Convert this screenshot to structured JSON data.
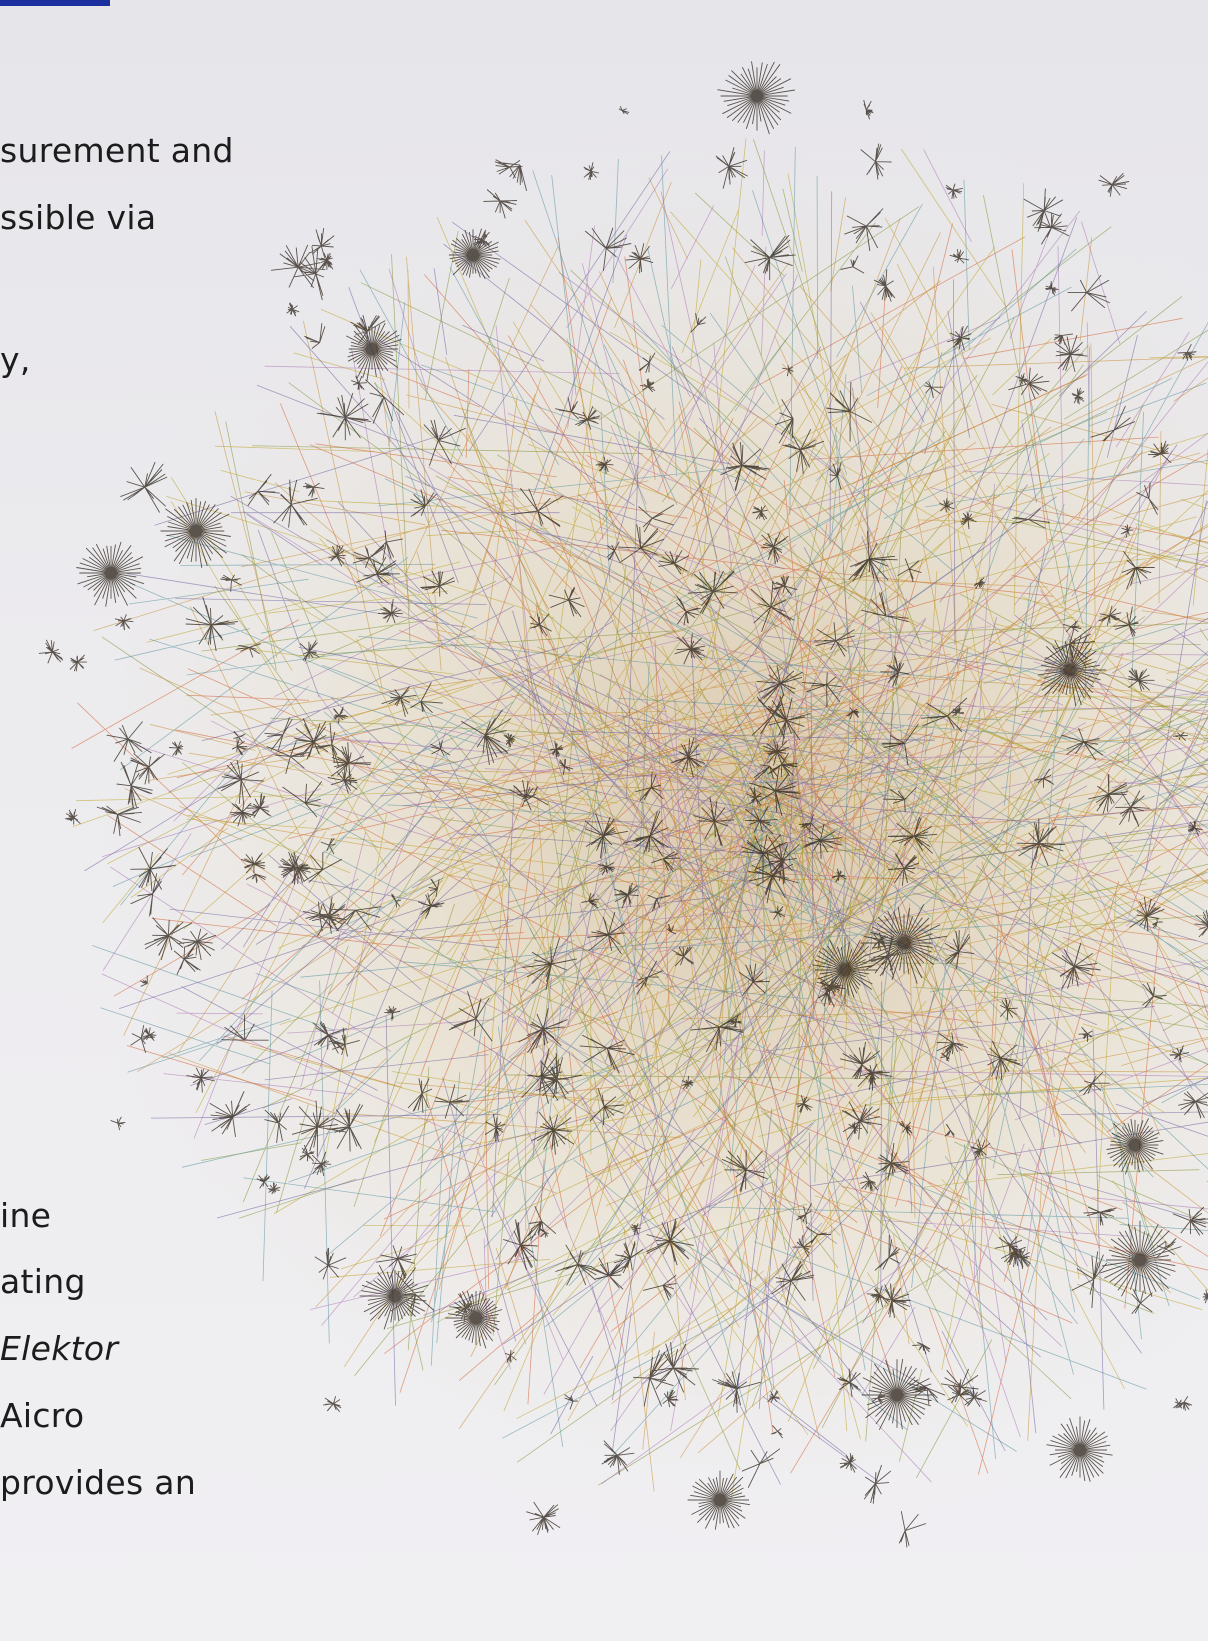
{
  "article": {
    "lines_top": [
      "surement and",
      "ssible via",
      "y,"
    ],
    "lines_bottom": [
      {
        "text": "ine"
      },
      {
        "text": "ating"
      },
      {
        "text": "Elektor"
      },
      {
        "text": "Aicro"
      },
      {
        "text": "provides an"
      }
    ]
  },
  "illustration": {
    "subject": "internet-map",
    "colors": [
      "#2b2118",
      "#c48a2c",
      "#b9a11c",
      "#4f8e9a",
      "#a86fb4",
      "#d15a2a",
      "#7a8f2a",
      "#6a5a9a"
    ]
  },
  "accent": "#1b2f9e"
}
